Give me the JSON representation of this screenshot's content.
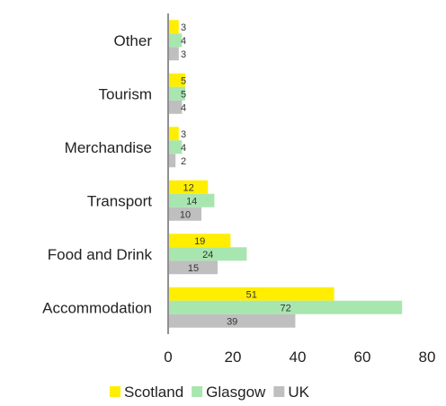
{
  "chart_data": {
    "type": "bar",
    "orientation": "horizontal",
    "categories": [
      "Accommodation",
      "Food and Drink",
      "Transport",
      "Merchandise",
      "Tourism",
      "Other"
    ],
    "series": [
      {
        "name": "Scotland",
        "values": [
          51,
          19,
          12,
          3,
          5,
          3
        ],
        "color": "#FFEE00"
      },
      {
        "name": "Glasgow",
        "values": [
          72,
          24,
          14,
          4,
          5,
          4
        ],
        "color": "#A8E6B0"
      },
      {
        "name": "UK",
        "values": [
          39,
          15,
          10,
          2,
          4,
          3
        ],
        "color": "#BFBFBF"
      }
    ],
    "xlim": [
      0,
      80
    ],
    "xticks": [
      0,
      20,
      40,
      60,
      80
    ],
    "grid": false,
    "legend_position": "bottom",
    "title": "",
    "xlabel": "",
    "ylabel": ""
  }
}
